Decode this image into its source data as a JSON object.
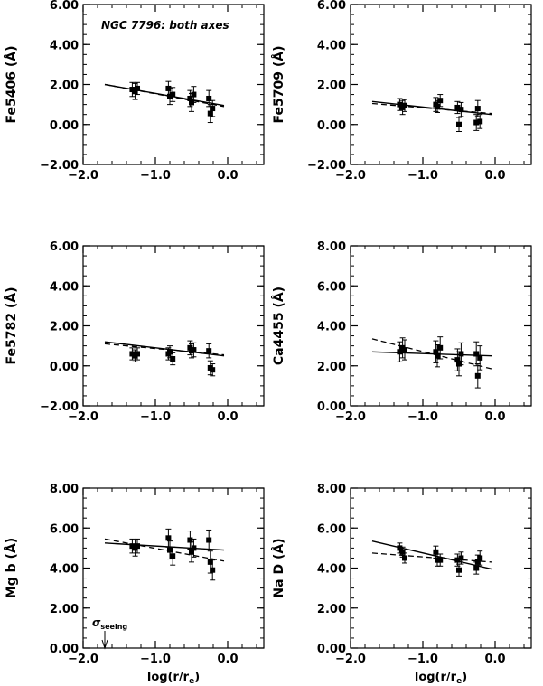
{
  "figure": {
    "annotation": "NGC 7796: both axes",
    "xlabel": "log(r/r",
    "xlabel_sub": "e",
    "xlabel_close": ")",
    "seeing_symbol": "σ",
    "seeing_sub": "seeing",
    "seeing_x": -1.7
  },
  "chart_data": [
    {
      "type": "scatter",
      "id": "fe5406",
      "ylabel": "Fe5406 (Å)",
      "xlim": [
        -2.0,
        0.5
      ],
      "ylim": [
        -2.0,
        6.0
      ],
      "xticks": [
        -2.0,
        -1.0,
        0.0
      ],
      "xtick_labels": [
        "−2.0",
        "−1.0",
        "0.0"
      ],
      "yticks": [
        -2.0,
        0.0,
        2.0,
        4.0,
        6.0
      ],
      "ytick_labels": [
        "−2.00",
        "0.00",
        "2.00",
        "4.00",
        "6.00"
      ],
      "points": [
        {
          "x": -1.32,
          "y": 1.75,
          "err": 0.35
        },
        {
          "x": -1.28,
          "y": 1.65,
          "err": 0.4
        },
        {
          "x": -1.25,
          "y": 1.8,
          "err": 0.3
        },
        {
          "x": -0.82,
          "y": 1.8,
          "err": 0.35
        },
        {
          "x": -0.8,
          "y": 1.4,
          "err": 0.4
        },
        {
          "x": -0.76,
          "y": 1.5,
          "err": 0.35
        },
        {
          "x": -0.52,
          "y": 1.3,
          "err": 0.4
        },
        {
          "x": -0.5,
          "y": 1.1,
          "err": 0.45
        },
        {
          "x": -0.47,
          "y": 1.5,
          "err": 0.4
        },
        {
          "x": -0.26,
          "y": 1.3,
          "err": 0.4
        },
        {
          "x": -0.24,
          "y": 0.55,
          "err": 0.45
        },
        {
          "x": -0.21,
          "y": 0.8,
          "err": 0.4
        }
      ],
      "solid_fit": {
        "x": [
          -1.7,
          -0.05
        ],
        "y": [
          2.0,
          0.95
        ]
      },
      "dashed_fit": {
        "x": [
          -1.7,
          -0.05
        ],
        "y": [
          2.0,
          0.9
        ]
      }
    },
    {
      "type": "scatter",
      "id": "fe5709",
      "ylabel": "Fe5709 (Å)",
      "xlim": [
        -2.0,
        0.5
      ],
      "ylim": [
        -2.0,
        6.0
      ],
      "xticks": [
        -2.0,
        -1.0,
        0.0
      ],
      "xtick_labels": [
        "−2.0",
        "−1.0",
        "0.0"
      ],
      "yticks": [
        -2.0,
        0.0,
        2.0,
        4.0,
        6.0
      ],
      "ytick_labels": [
        "−2.00",
        "0.00",
        "2.00",
        "4.00",
        "6.00"
      ],
      "points": [
        {
          "x": -1.32,
          "y": 1.0,
          "err": 0.3
        },
        {
          "x": -1.28,
          "y": 0.85,
          "err": 0.35
        },
        {
          "x": -1.25,
          "y": 0.95,
          "err": 0.3
        },
        {
          "x": -0.82,
          "y": 1.0,
          "err": 0.35
        },
        {
          "x": -0.8,
          "y": 0.9,
          "err": 0.3
        },
        {
          "x": -0.76,
          "y": 1.2,
          "err": 0.3
        },
        {
          "x": -0.52,
          "y": 0.85,
          "err": 0.3
        },
        {
          "x": -0.5,
          "y": 0.0,
          "err": 0.35
        },
        {
          "x": -0.47,
          "y": 0.75,
          "err": 0.35
        },
        {
          "x": -0.26,
          "y": 0.1,
          "err": 0.4
        },
        {
          "x": -0.24,
          "y": 0.8,
          "err": 0.4
        },
        {
          "x": -0.21,
          "y": 0.15,
          "err": 0.35
        }
      ],
      "solid_fit": {
        "x": [
          -1.7,
          -0.05
        ],
        "y": [
          1.15,
          0.5
        ]
      },
      "dashed_fit": {
        "x": [
          -1.7,
          -0.05
        ],
        "y": [
          1.05,
          0.55
        ]
      }
    },
    {
      "type": "scatter",
      "id": "fe5782",
      "ylabel": "Fe5782 (Å)",
      "xlim": [
        -2.0,
        0.5
      ],
      "ylim": [
        -2.0,
        6.0
      ],
      "xticks": [
        -2.0,
        -1.0,
        0.0
      ],
      "xtick_labels": [
        "−2.0",
        "−1.0",
        "0.0"
      ],
      "yticks": [
        -2.0,
        0.0,
        2.0,
        4.0,
        6.0
      ],
      "ytick_labels": [
        "−2.00",
        "0.00",
        "2.00",
        "4.00",
        "6.00"
      ],
      "points": [
        {
          "x": -1.32,
          "y": 0.6,
          "err": 0.3
        },
        {
          "x": -1.28,
          "y": 0.5,
          "err": 0.3
        },
        {
          "x": -1.25,
          "y": 0.6,
          "err": 0.3
        },
        {
          "x": -0.82,
          "y": 0.6,
          "err": 0.3
        },
        {
          "x": -0.8,
          "y": 0.7,
          "err": 0.3
        },
        {
          "x": -0.76,
          "y": 0.35,
          "err": 0.3
        },
        {
          "x": -0.52,
          "y": 0.9,
          "err": 0.35
        },
        {
          "x": -0.5,
          "y": 0.75,
          "err": 0.35
        },
        {
          "x": -0.47,
          "y": 0.8,
          "err": 0.35
        },
        {
          "x": -0.26,
          "y": 0.75,
          "err": 0.35
        },
        {
          "x": -0.24,
          "y": -0.1,
          "err": 0.35
        },
        {
          "x": -0.21,
          "y": -0.2,
          "err": 0.3
        }
      ],
      "solid_fit": {
        "x": [
          -1.7,
          -0.05
        ],
        "y": [
          1.2,
          0.5
        ]
      },
      "dashed_fit": {
        "x": [
          -1.7,
          -0.05
        ],
        "y": [
          1.1,
          0.55
        ]
      }
    },
    {
      "type": "scatter",
      "id": "ca4455",
      "ylabel": "Ca4455 (Å)",
      "xlim": [
        -2.0,
        0.5
      ],
      "ylim": [
        0.0,
        8.0
      ],
      "xticks": [
        -2.0,
        -1.0,
        0.0
      ],
      "xtick_labels": [
        "−2.0",
        "−1.0",
        "0.0"
      ],
      "yticks": [
        0.0,
        2.0,
        4.0,
        6.0,
        8.0
      ],
      "ytick_labels": [
        "0.00",
        "2.00",
        "4.00",
        "6.00",
        "8.00"
      ],
      "points": [
        {
          "x": -1.32,
          "y": 2.7,
          "err": 0.5
        },
        {
          "x": -1.28,
          "y": 2.9,
          "err": 0.5
        },
        {
          "x": -1.25,
          "y": 2.8,
          "err": 0.5
        },
        {
          "x": -0.82,
          "y": 2.7,
          "err": 0.55
        },
        {
          "x": -0.8,
          "y": 2.5,
          "err": 0.55
        },
        {
          "x": -0.76,
          "y": 2.9,
          "err": 0.55
        },
        {
          "x": -0.52,
          "y": 2.3,
          "err": 0.55
        },
        {
          "x": -0.5,
          "y": 2.1,
          "err": 0.6
        },
        {
          "x": -0.47,
          "y": 2.6,
          "err": 0.55
        },
        {
          "x": -0.26,
          "y": 2.6,
          "err": 0.6
        },
        {
          "x": -0.24,
          "y": 1.5,
          "err": 0.6
        },
        {
          "x": -0.21,
          "y": 2.4,
          "err": 0.6
        }
      ],
      "solid_fit": {
        "x": [
          -1.7,
          -0.05
        ],
        "y": [
          2.7,
          2.5
        ]
      },
      "dashed_fit": {
        "x": [
          -1.7,
          -0.05
        ],
        "y": [
          3.35,
          1.85
        ]
      }
    },
    {
      "type": "scatter",
      "id": "mgb",
      "ylabel": "Mg b (Å)",
      "xlim": [
        -2.0,
        0.5
      ],
      "ylim": [
        0.0,
        8.0
      ],
      "xticks": [
        -2.0,
        -1.0,
        0.0
      ],
      "xtick_labels": [
        "−2.0",
        "−1.0",
        "0.0"
      ],
      "yticks": [
        0.0,
        2.0,
        4.0,
        6.0,
        8.0
      ],
      "ytick_labels": [
        "0.00",
        "2.00",
        "4.00",
        "6.00",
        "8.00"
      ],
      "points": [
        {
          "x": -1.32,
          "y": 5.1,
          "err": 0.35
        },
        {
          "x": -1.28,
          "y": 5.0,
          "err": 0.4
        },
        {
          "x": -1.25,
          "y": 5.1,
          "err": 0.35
        },
        {
          "x": -0.82,
          "y": 5.5,
          "err": 0.45
        },
        {
          "x": -0.8,
          "y": 4.9,
          "err": 0.45
        },
        {
          "x": -0.76,
          "y": 4.6,
          "err": 0.45
        },
        {
          "x": -0.52,
          "y": 5.4,
          "err": 0.45
        },
        {
          "x": -0.5,
          "y": 4.8,
          "err": 0.5
        },
        {
          "x": -0.47,
          "y": 5.0,
          "err": 0.45
        },
        {
          "x": -0.26,
          "y": 5.4,
          "err": 0.5
        },
        {
          "x": -0.24,
          "y": 4.3,
          "err": 0.55
        },
        {
          "x": -0.21,
          "y": 3.9,
          "err": 0.5
        }
      ],
      "solid_fit": {
        "x": [
          -1.7,
          -0.05
        ],
        "y": [
          5.25,
          4.9
        ]
      },
      "dashed_fit": {
        "x": [
          -1.7,
          -0.05
        ],
        "y": [
          5.45,
          4.35
        ]
      }
    },
    {
      "type": "scatter",
      "id": "nad",
      "ylabel": "Na D (Å)",
      "xlim": [
        -2.0,
        0.5
      ],
      "ylim": [
        0.0,
        8.0
      ],
      "xticks": [
        -2.0,
        -1.0,
        0.0
      ],
      "xtick_labels": [
        "−2.0",
        "−1.0",
        "0.0"
      ],
      "yticks": [
        0.0,
        2.0,
        4.0,
        6.0,
        8.0
      ],
      "ytick_labels": [
        "0.00",
        "2.00",
        "4.00",
        "6.00",
        "8.00"
      ],
      "points": [
        {
          "x": -1.32,
          "y": 5.0,
          "err": 0.25
        },
        {
          "x": -1.28,
          "y": 4.8,
          "err": 0.25
        },
        {
          "x": -1.25,
          "y": 4.5,
          "err": 0.25
        },
        {
          "x": -0.82,
          "y": 4.8,
          "err": 0.3
        },
        {
          "x": -0.8,
          "y": 4.4,
          "err": 0.3
        },
        {
          "x": -0.76,
          "y": 4.4,
          "err": 0.3
        },
        {
          "x": -0.52,
          "y": 4.4,
          "err": 0.3
        },
        {
          "x": -0.5,
          "y": 3.9,
          "err": 0.3
        },
        {
          "x": -0.47,
          "y": 4.5,
          "err": 0.3
        },
        {
          "x": -0.26,
          "y": 4.0,
          "err": 0.3
        },
        {
          "x": -0.24,
          "y": 4.3,
          "err": 0.35
        },
        {
          "x": -0.21,
          "y": 4.5,
          "err": 0.35
        }
      ],
      "solid_fit": {
        "x": [
          -1.7,
          -0.05
        ],
        "y": [
          5.35,
          3.95
        ]
      },
      "dashed_fit": {
        "x": [
          -1.7,
          -0.05
        ],
        "y": [
          4.75,
          4.3
        ]
      }
    }
  ]
}
